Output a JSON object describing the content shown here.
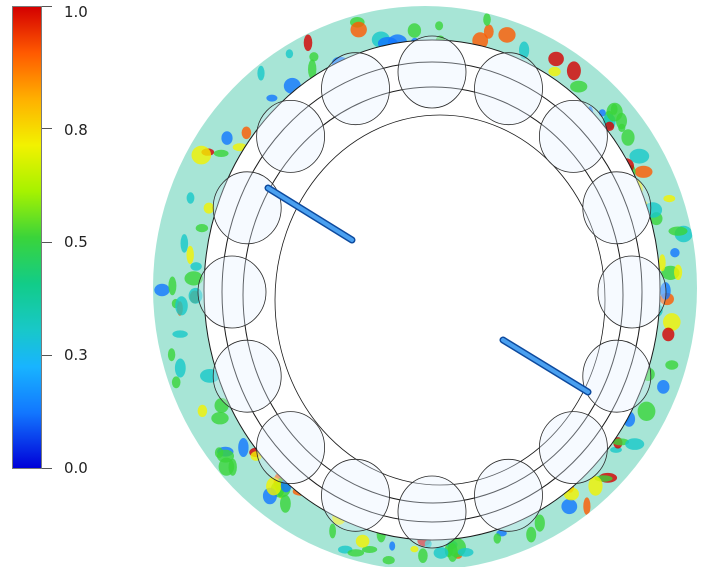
{
  "colorbar": {
    "ticks": [
      {
        "label": "1.0",
        "value": 1.0
      },
      {
        "label": "0.8",
        "value": 0.8
      },
      {
        "label": "0.5",
        "value": 0.5
      },
      {
        "label": "0.3",
        "value": 0.3
      },
      {
        "label": "0.0",
        "value": 0.0
      }
    ],
    "colors": [
      "#d40000",
      "#ff5a00",
      "#f2f200",
      "#3ad43a",
      "#18c8c8",
      "#1277ff",
      "#0000d8"
    ]
  },
  "scene": {
    "rolling_elements": 16
  }
}
